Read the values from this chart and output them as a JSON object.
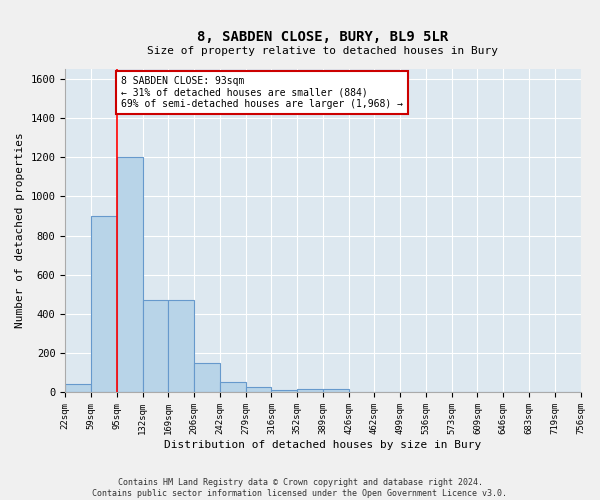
{
  "title": "8, SABDEN CLOSE, BURY, BL9 5LR",
  "subtitle": "Size of property relative to detached houses in Bury",
  "xlabel": "Distribution of detached houses by size in Bury",
  "ylabel": "Number of detached properties",
  "footer": "Contains HM Land Registry data © Crown copyright and database right 2024.\nContains public sector information licensed under the Open Government Licence v3.0.",
  "bins": [
    "22sqm",
    "59sqm",
    "95sqm",
    "132sqm",
    "169sqm",
    "206sqm",
    "242sqm",
    "279sqm",
    "316sqm",
    "352sqm",
    "389sqm",
    "426sqm",
    "462sqm",
    "499sqm",
    "536sqm",
    "573sqm",
    "609sqm",
    "646sqm",
    "683sqm",
    "719sqm",
    "756sqm"
  ],
  "bar_values": [
    45,
    900,
    1200,
    470,
    470,
    150,
    55,
    30,
    15,
    20,
    20,
    0,
    0,
    0,
    0,
    0,
    0,
    0,
    0,
    0
  ],
  "bar_color": "#b8d4e8",
  "bar_edge_color": "#6699cc",
  "red_line_x": 2.0,
  "annotation_text_line1": "8 SABDEN CLOSE: 93sqm",
  "annotation_text_line2": "← 31% of detached houses are smaller (884)",
  "annotation_text_line3": "69% of semi-detached houses are larger (1,968) →",
  "annotation_box_color": "#cc0000",
  "ylim": [
    0,
    1650
  ],
  "background_color": "#dde8f0",
  "grid_color": "#ffffff",
  "fig_bg_color": "#f0f0f0"
}
